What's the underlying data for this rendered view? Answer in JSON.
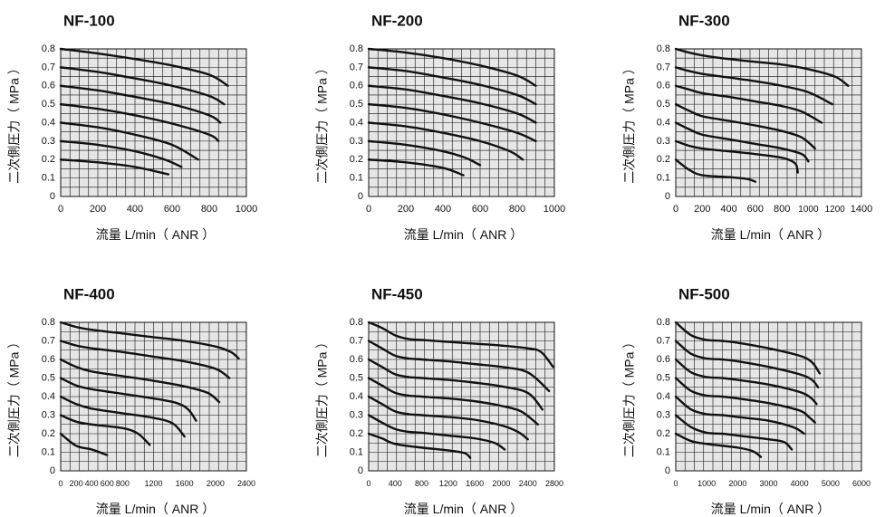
{
  "chart_data": [
    {
      "type": "line",
      "title": "NF-100",
      "xlabel": "流量 L/min（ ANR ）",
      "ylabel": "二次側圧力（ MPa ）",
      "xlim": [
        0,
        1000
      ],
      "ylim": [
        0,
        0.8
      ],
      "x_ticks": [
        "0",
        "200",
        "400",
        "600",
        "800",
        "1000"
      ],
      "y_ticks": [
        "0",
        "0.1",
        "0.2",
        "0.3",
        "0.4",
        "0.5",
        "0.6",
        "0.7",
        "0.8"
      ],
      "grid": true,
      "series": [
        {
          "x": [
            0,
            200,
            400,
            600,
            800,
            900
          ],
          "y": [
            0.8,
            0.775,
            0.745,
            0.71,
            0.66,
            0.6
          ]
        },
        {
          "x": [
            0,
            200,
            400,
            600,
            800,
            880
          ],
          "y": [
            0.7,
            0.675,
            0.64,
            0.6,
            0.545,
            0.5
          ]
        },
        {
          "x": [
            0,
            200,
            400,
            600,
            800,
            860
          ],
          "y": [
            0.6,
            0.575,
            0.54,
            0.5,
            0.44,
            0.4
          ]
        },
        {
          "x": [
            0,
            200,
            400,
            600,
            800,
            850
          ],
          "y": [
            0.5,
            0.475,
            0.44,
            0.395,
            0.335,
            0.3
          ]
        },
        {
          "x": [
            0,
            200,
            400,
            600,
            740
          ],
          "y": [
            0.4,
            0.375,
            0.335,
            0.28,
            0.2
          ]
        },
        {
          "x": [
            0,
            200,
            400,
            560,
            650
          ],
          "y": [
            0.3,
            0.28,
            0.245,
            0.2,
            0.16
          ]
        },
        {
          "x": [
            0,
            200,
            400,
            580
          ],
          "y": [
            0.2,
            0.185,
            0.16,
            0.12
          ]
        }
      ]
    },
    {
      "type": "line",
      "title": "NF-200",
      "xlabel": "流量 L/min（ ANR ）",
      "ylabel": "二次側圧力（ MPa ）",
      "xlim": [
        0,
        1000
      ],
      "ylim": [
        0,
        0.8
      ],
      "x_ticks": [
        "0",
        "200",
        "400",
        "600",
        "800",
        "1000"
      ],
      "y_ticks": [
        "0",
        "0.1",
        "0.2",
        "0.3",
        "0.4",
        "0.5",
        "0.6",
        "0.7",
        "0.8"
      ],
      "grid": true,
      "series": [
        {
          "x": [
            0,
            200,
            400,
            600,
            800,
            900
          ],
          "y": [
            0.8,
            0.78,
            0.75,
            0.71,
            0.655,
            0.6
          ]
        },
        {
          "x": [
            0,
            200,
            400,
            600,
            800,
            900
          ],
          "y": [
            0.7,
            0.68,
            0.645,
            0.605,
            0.55,
            0.5
          ]
        },
        {
          "x": [
            0,
            200,
            400,
            600,
            800,
            900
          ],
          "y": [
            0.6,
            0.58,
            0.545,
            0.505,
            0.45,
            0.4
          ]
        },
        {
          "x": [
            0,
            200,
            400,
            600,
            800,
            900
          ],
          "y": [
            0.5,
            0.48,
            0.445,
            0.4,
            0.345,
            0.3
          ]
        },
        {
          "x": [
            0,
            200,
            400,
            600,
            760,
            830
          ],
          "y": [
            0.4,
            0.38,
            0.345,
            0.3,
            0.245,
            0.2
          ]
        },
        {
          "x": [
            0,
            200,
            400,
            520,
            600
          ],
          "y": [
            0.3,
            0.28,
            0.245,
            0.21,
            0.17
          ]
        },
        {
          "x": [
            0,
            200,
            400,
            510
          ],
          "y": [
            0.2,
            0.185,
            0.155,
            0.115
          ]
        }
      ]
    },
    {
      "type": "line",
      "title": "NF-300",
      "xlabel": "流量 L/min（ ANR ）",
      "ylabel": "二次側圧力（ MPa ）",
      "xlim": [
        0,
        1400
      ],
      "ylim": [
        0,
        0.8
      ],
      "x_ticks": [
        "0",
        "200",
        "400",
        "600",
        "800",
        "1000",
        "1200",
        "1400"
      ],
      "y_ticks": [
        "0",
        "0.1",
        "0.2",
        "0.3",
        "0.4",
        "0.5",
        "0.6",
        "0.7",
        "0.8"
      ],
      "grid": true,
      "series": [
        {
          "x": [
            0,
            100,
            200,
            400,
            600,
            800,
            1000,
            1200,
            1300
          ],
          "y": [
            0.8,
            0.78,
            0.765,
            0.745,
            0.73,
            0.715,
            0.69,
            0.65,
            0.6
          ]
        },
        {
          "x": [
            0,
            100,
            200,
            400,
            600,
            800,
            1000,
            1180
          ],
          "y": [
            0.7,
            0.68,
            0.665,
            0.645,
            0.625,
            0.6,
            0.565,
            0.5
          ]
        },
        {
          "x": [
            0,
            100,
            200,
            400,
            600,
            800,
            950,
            1100
          ],
          "y": [
            0.6,
            0.58,
            0.56,
            0.54,
            0.515,
            0.49,
            0.46,
            0.4
          ]
        },
        {
          "x": [
            0,
            100,
            200,
            400,
            600,
            800,
            950,
            1050
          ],
          "y": [
            0.5,
            0.465,
            0.435,
            0.41,
            0.385,
            0.355,
            0.32,
            0.26
          ]
        },
        {
          "x": [
            0,
            100,
            200,
            400,
            600,
            800,
            950,
            1000
          ],
          "y": [
            0.4,
            0.365,
            0.335,
            0.31,
            0.285,
            0.26,
            0.23,
            0.19
          ]
        },
        {
          "x": [
            0,
            100,
            200,
            400,
            600,
            800,
            900,
            920
          ],
          "y": [
            0.3,
            0.275,
            0.26,
            0.245,
            0.23,
            0.21,
            0.18,
            0.13
          ]
        },
        {
          "x": [
            0,
            100,
            200,
            400,
            540,
            600
          ],
          "y": [
            0.2,
            0.145,
            0.115,
            0.105,
            0.095,
            0.08
          ]
        }
      ]
    },
    {
      "type": "line",
      "title": "NF-400",
      "xlabel": "流量 L/min（ ANR ）",
      "ylabel": "二次側圧力（ MPa ）",
      "xlim": [
        0,
        2400
      ],
      "ylim": [
        0,
        0.8
      ],
      "x_ticks": [
        "0",
        "200",
        "400",
        "600",
        "800",
        "1200",
        "1600",
        "2000",
        "2400"
      ],
      "y_ticks": [
        "0",
        "0.1",
        "0.2",
        "0.3",
        "0.4",
        "0.5",
        "0.6",
        "0.7",
        "0.8"
      ],
      "grid": true,
      "series": [
        {
          "x": [
            0,
            200,
            400,
            800,
            1200,
            1600,
            2000,
            2200,
            2300
          ],
          "y": [
            0.8,
            0.775,
            0.76,
            0.74,
            0.72,
            0.7,
            0.67,
            0.64,
            0.605
          ]
        },
        {
          "x": [
            0,
            200,
            400,
            800,
            1200,
            1600,
            2000,
            2180
          ],
          "y": [
            0.7,
            0.675,
            0.66,
            0.64,
            0.615,
            0.59,
            0.55,
            0.5
          ]
        },
        {
          "x": [
            0,
            200,
            400,
            800,
            1200,
            1600,
            1900,
            2050
          ],
          "y": [
            0.6,
            0.56,
            0.535,
            0.51,
            0.485,
            0.455,
            0.42,
            0.37
          ]
        },
        {
          "x": [
            0,
            200,
            400,
            800,
            1200,
            1500,
            1650,
            1750
          ],
          "y": [
            0.5,
            0.46,
            0.44,
            0.415,
            0.39,
            0.365,
            0.33,
            0.27
          ]
        },
        {
          "x": [
            0,
            200,
            400,
            800,
            1200,
            1450,
            1600
          ],
          "y": [
            0.4,
            0.36,
            0.335,
            0.31,
            0.285,
            0.255,
            0.185
          ]
        },
        {
          "x": [
            0,
            200,
            400,
            800,
            1000,
            1150
          ],
          "y": [
            0.3,
            0.265,
            0.25,
            0.23,
            0.2,
            0.14
          ]
        },
        {
          "x": [
            0,
            200,
            400,
            600
          ],
          "y": [
            0.2,
            0.135,
            0.115,
            0.085
          ]
        }
      ]
    },
    {
      "type": "line",
      "title": "NF-450",
      "xlabel": "流量 L/min（ ANR ）",
      "ylabel": "二次側圧力（ MPa ）",
      "xlim": [
        0,
        2800
      ],
      "ylim": [
        0,
        0.8
      ],
      "x_ticks": [
        "0",
        "400",
        "800",
        "1200",
        "1600",
        "2000",
        "2400",
        "2800"
      ],
      "y_ticks": [
        "0",
        "0.1",
        "0.2",
        "0.3",
        "0.4",
        "0.5",
        "0.6",
        "0.7",
        "0.8"
      ],
      "grid": true,
      "series": [
        {
          "x": [
            0,
            200,
            400,
            600,
            800,
            1200,
            1600,
            2000,
            2400,
            2600,
            2780
          ],
          "y": [
            0.8,
            0.77,
            0.73,
            0.71,
            0.705,
            0.695,
            0.685,
            0.675,
            0.66,
            0.64,
            0.56
          ]
        },
        {
          "x": [
            0,
            200,
            400,
            600,
            800,
            1200,
            1600,
            2000,
            2400,
            2720
          ],
          "y": [
            0.7,
            0.66,
            0.62,
            0.605,
            0.6,
            0.59,
            0.575,
            0.56,
            0.53,
            0.43
          ]
        },
        {
          "x": [
            0,
            200,
            400,
            600,
            800,
            1200,
            1600,
            2000,
            2400,
            2620
          ],
          "y": [
            0.6,
            0.56,
            0.52,
            0.505,
            0.5,
            0.49,
            0.475,
            0.455,
            0.42,
            0.33
          ]
        },
        {
          "x": [
            0,
            200,
            400,
            600,
            800,
            1200,
            1600,
            2000,
            2300,
            2550
          ],
          "y": [
            0.5,
            0.46,
            0.42,
            0.405,
            0.4,
            0.39,
            0.375,
            0.35,
            0.32,
            0.25
          ]
        },
        {
          "x": [
            0,
            200,
            400,
            600,
            800,
            1200,
            1600,
            2000,
            2250,
            2400
          ],
          "y": [
            0.4,
            0.36,
            0.32,
            0.305,
            0.3,
            0.29,
            0.275,
            0.245,
            0.21,
            0.17
          ]
        },
        {
          "x": [
            0,
            200,
            400,
            600,
            800,
            1200,
            1600,
            1900,
            2050
          ],
          "y": [
            0.3,
            0.26,
            0.225,
            0.21,
            0.205,
            0.19,
            0.175,
            0.15,
            0.115
          ]
        },
        {
          "x": [
            0,
            200,
            400,
            800,
            1200,
            1450,
            1530
          ],
          "y": [
            0.2,
            0.175,
            0.145,
            0.125,
            0.11,
            0.095,
            0.07
          ]
        }
      ]
    },
    {
      "type": "line",
      "title": "NF-500",
      "xlabel": "流量 L/min（ ANR ）",
      "ylabel": "二次側圧力（ MPa ）",
      "xlim": [
        0,
        6000
      ],
      "ylim": [
        0,
        0.8
      ],
      "x_ticks": [
        "0",
        "1000",
        "2000",
        "3000",
        "4000",
        "5000",
        "6000"
      ],
      "y_ticks": [
        "0",
        "0.1",
        "0.2",
        "0.3",
        "0.4",
        "0.5",
        "0.6",
        "0.7",
        "0.8"
      ],
      "grid": true,
      "series": [
        {
          "x": [
            0,
            500,
            1000,
            1500,
            2000,
            3000,
            4000,
            4400,
            4650
          ],
          "y": [
            0.8,
            0.73,
            0.705,
            0.7,
            0.69,
            0.66,
            0.62,
            0.585,
            0.525
          ]
        },
        {
          "x": [
            0,
            500,
            1000,
            1500,
            2000,
            3000,
            4000,
            4400,
            4600
          ],
          "y": [
            0.7,
            0.63,
            0.605,
            0.6,
            0.59,
            0.56,
            0.52,
            0.49,
            0.45
          ]
        },
        {
          "x": [
            0,
            500,
            1000,
            1500,
            2000,
            3000,
            4000,
            4350,
            4550
          ],
          "y": [
            0.6,
            0.53,
            0.505,
            0.5,
            0.49,
            0.465,
            0.425,
            0.395,
            0.36
          ]
        },
        {
          "x": [
            0,
            500,
            1000,
            1500,
            2000,
            3000,
            4000,
            4300,
            4500
          ],
          "y": [
            0.5,
            0.43,
            0.405,
            0.4,
            0.39,
            0.365,
            0.325,
            0.29,
            0.26
          ]
        },
        {
          "x": [
            0,
            500,
            1000,
            1500,
            2000,
            3000,
            3800,
            4150
          ],
          "y": [
            0.4,
            0.33,
            0.305,
            0.3,
            0.29,
            0.27,
            0.235,
            0.2
          ]
        },
        {
          "x": [
            0,
            500,
            1000,
            1500,
            2000,
            3000,
            3500,
            3750
          ],
          "y": [
            0.3,
            0.235,
            0.205,
            0.2,
            0.19,
            0.17,
            0.155,
            0.115
          ]
        },
        {
          "x": [
            0,
            500,
            1000,
            2000,
            2500,
            2750
          ],
          "y": [
            0.2,
            0.16,
            0.145,
            0.125,
            0.105,
            0.075
          ]
        }
      ]
    }
  ]
}
